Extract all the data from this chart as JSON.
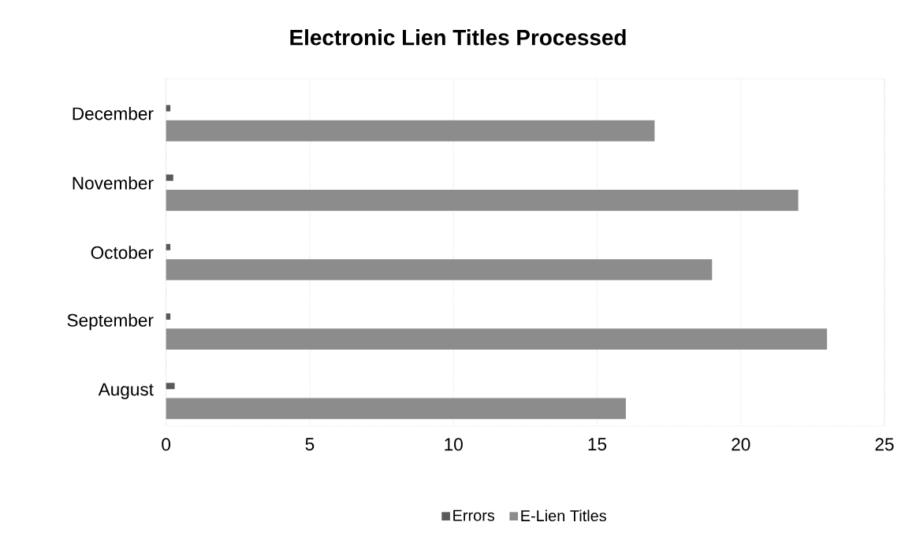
{
  "chart_data": {
    "type": "bar",
    "orientation": "horizontal",
    "title": "Electronic Lien Titles Processed",
    "categories": [
      "December",
      "November",
      "October",
      "September",
      "August"
    ],
    "series": [
      {
        "name": "Errors",
        "color": "#5a5a5a",
        "values": [
          0.15,
          0.25,
          0.15,
          0.15,
          0.3
        ]
      },
      {
        "name": "E-Lien Titles",
        "color": "#8c8c8c",
        "values": [
          17,
          22,
          19,
          23,
          16
        ]
      }
    ],
    "xlim": [
      0,
      25
    ],
    "xticks": [
      0,
      5,
      10,
      15,
      20,
      25
    ],
    "grid": "x",
    "legend": "bottom"
  }
}
